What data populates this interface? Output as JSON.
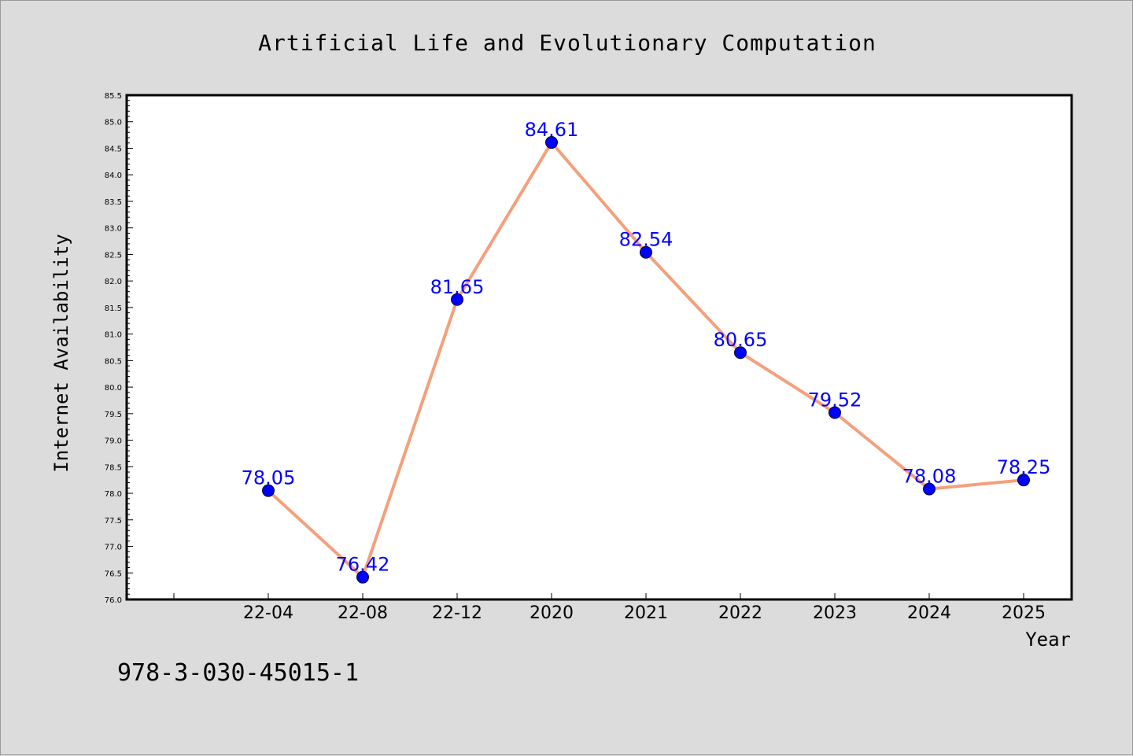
{
  "chart_data": {
    "type": "line",
    "title": "Artificial Life and Evolutionary Computation",
    "xlabel": "Year",
    "ylabel": "Internet Availability",
    "categories": [
      "22-04",
      "22-08",
      "22-12",
      "2020",
      "2021",
      "2022",
      "2023",
      "2024",
      "2025"
    ],
    "values": [
      78.05,
      76.42,
      81.65,
      84.61,
      82.54,
      80.65,
      79.52,
      78.08,
      78.25
    ],
    "data_labels": [
      "78.05",
      "76.42",
      "81.65",
      "84.61",
      "82.54",
      "80.65",
      "79.52",
      "78.08",
      "78.25"
    ],
    "ylim": [
      76.0,
      85.5
    ],
    "yticks": [
      "76.0",
      "76.5",
      "77.0",
      "77.5",
      "78.0",
      "78.5",
      "79.0",
      "79.5",
      "80.0",
      "80.5",
      "81.0",
      "81.5",
      "82.0",
      "82.5",
      "83.0",
      "83.5",
      "84.0",
      "84.5",
      "85.0",
      "85.5"
    ],
    "grid": false,
    "line_color": "#f4a07c",
    "marker_color": "#0000ff",
    "label_color": "#0000ff",
    "background_color": "#dcdcdc",
    "plot_background_color": "#ffffff"
  },
  "footnote": "978-3-030-45015-1"
}
